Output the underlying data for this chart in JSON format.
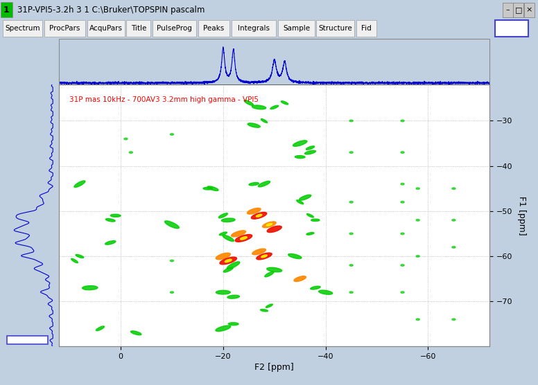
{
  "title_bar": "31P-VPI5-3.2h 3 1 C:\\Bruker\\TOPSPIN pascalm",
  "menu_tabs": [
    "Spectrum",
    "ProcPars",
    "AcquPars",
    "Title",
    "PulseProg",
    "Peaks",
    "Integrals",
    "Sample",
    "Structure",
    "Fid"
  ],
  "annotation": "31P mas 10kHz - 700AV3 3.2mm high gamma - VPI5",
  "annotation_color": "#FF0000",
  "f2_label": "F2 [ppm]",
  "f1_label": "F1 [ppm]",
  "f2_xlim": [
    12,
    -72
  ],
  "f1_ylim": [
    -80,
    -22
  ],
  "grid_color": "#AAAAAA",
  "bg_color": "#FFFFFF",
  "outer_bg": "#C0D0E0",
  "f2_ticks": [
    0,
    -20,
    -40,
    -60
  ],
  "f1_ticks": [
    -30,
    -40,
    -50,
    -60,
    -70
  ],
  "left_proj_color": "#0000CC",
  "peak_color_green": "#00CC00",
  "peak_color_orange": "#FF8800",
  "peak_color_red": "#EE1100",
  "peak_color_yellow": "#FFEE00",
  "title_bg": "#6699CC",
  "menu_bg": "#E0E0E0",
  "tab_bg": "#F0F0F0"
}
